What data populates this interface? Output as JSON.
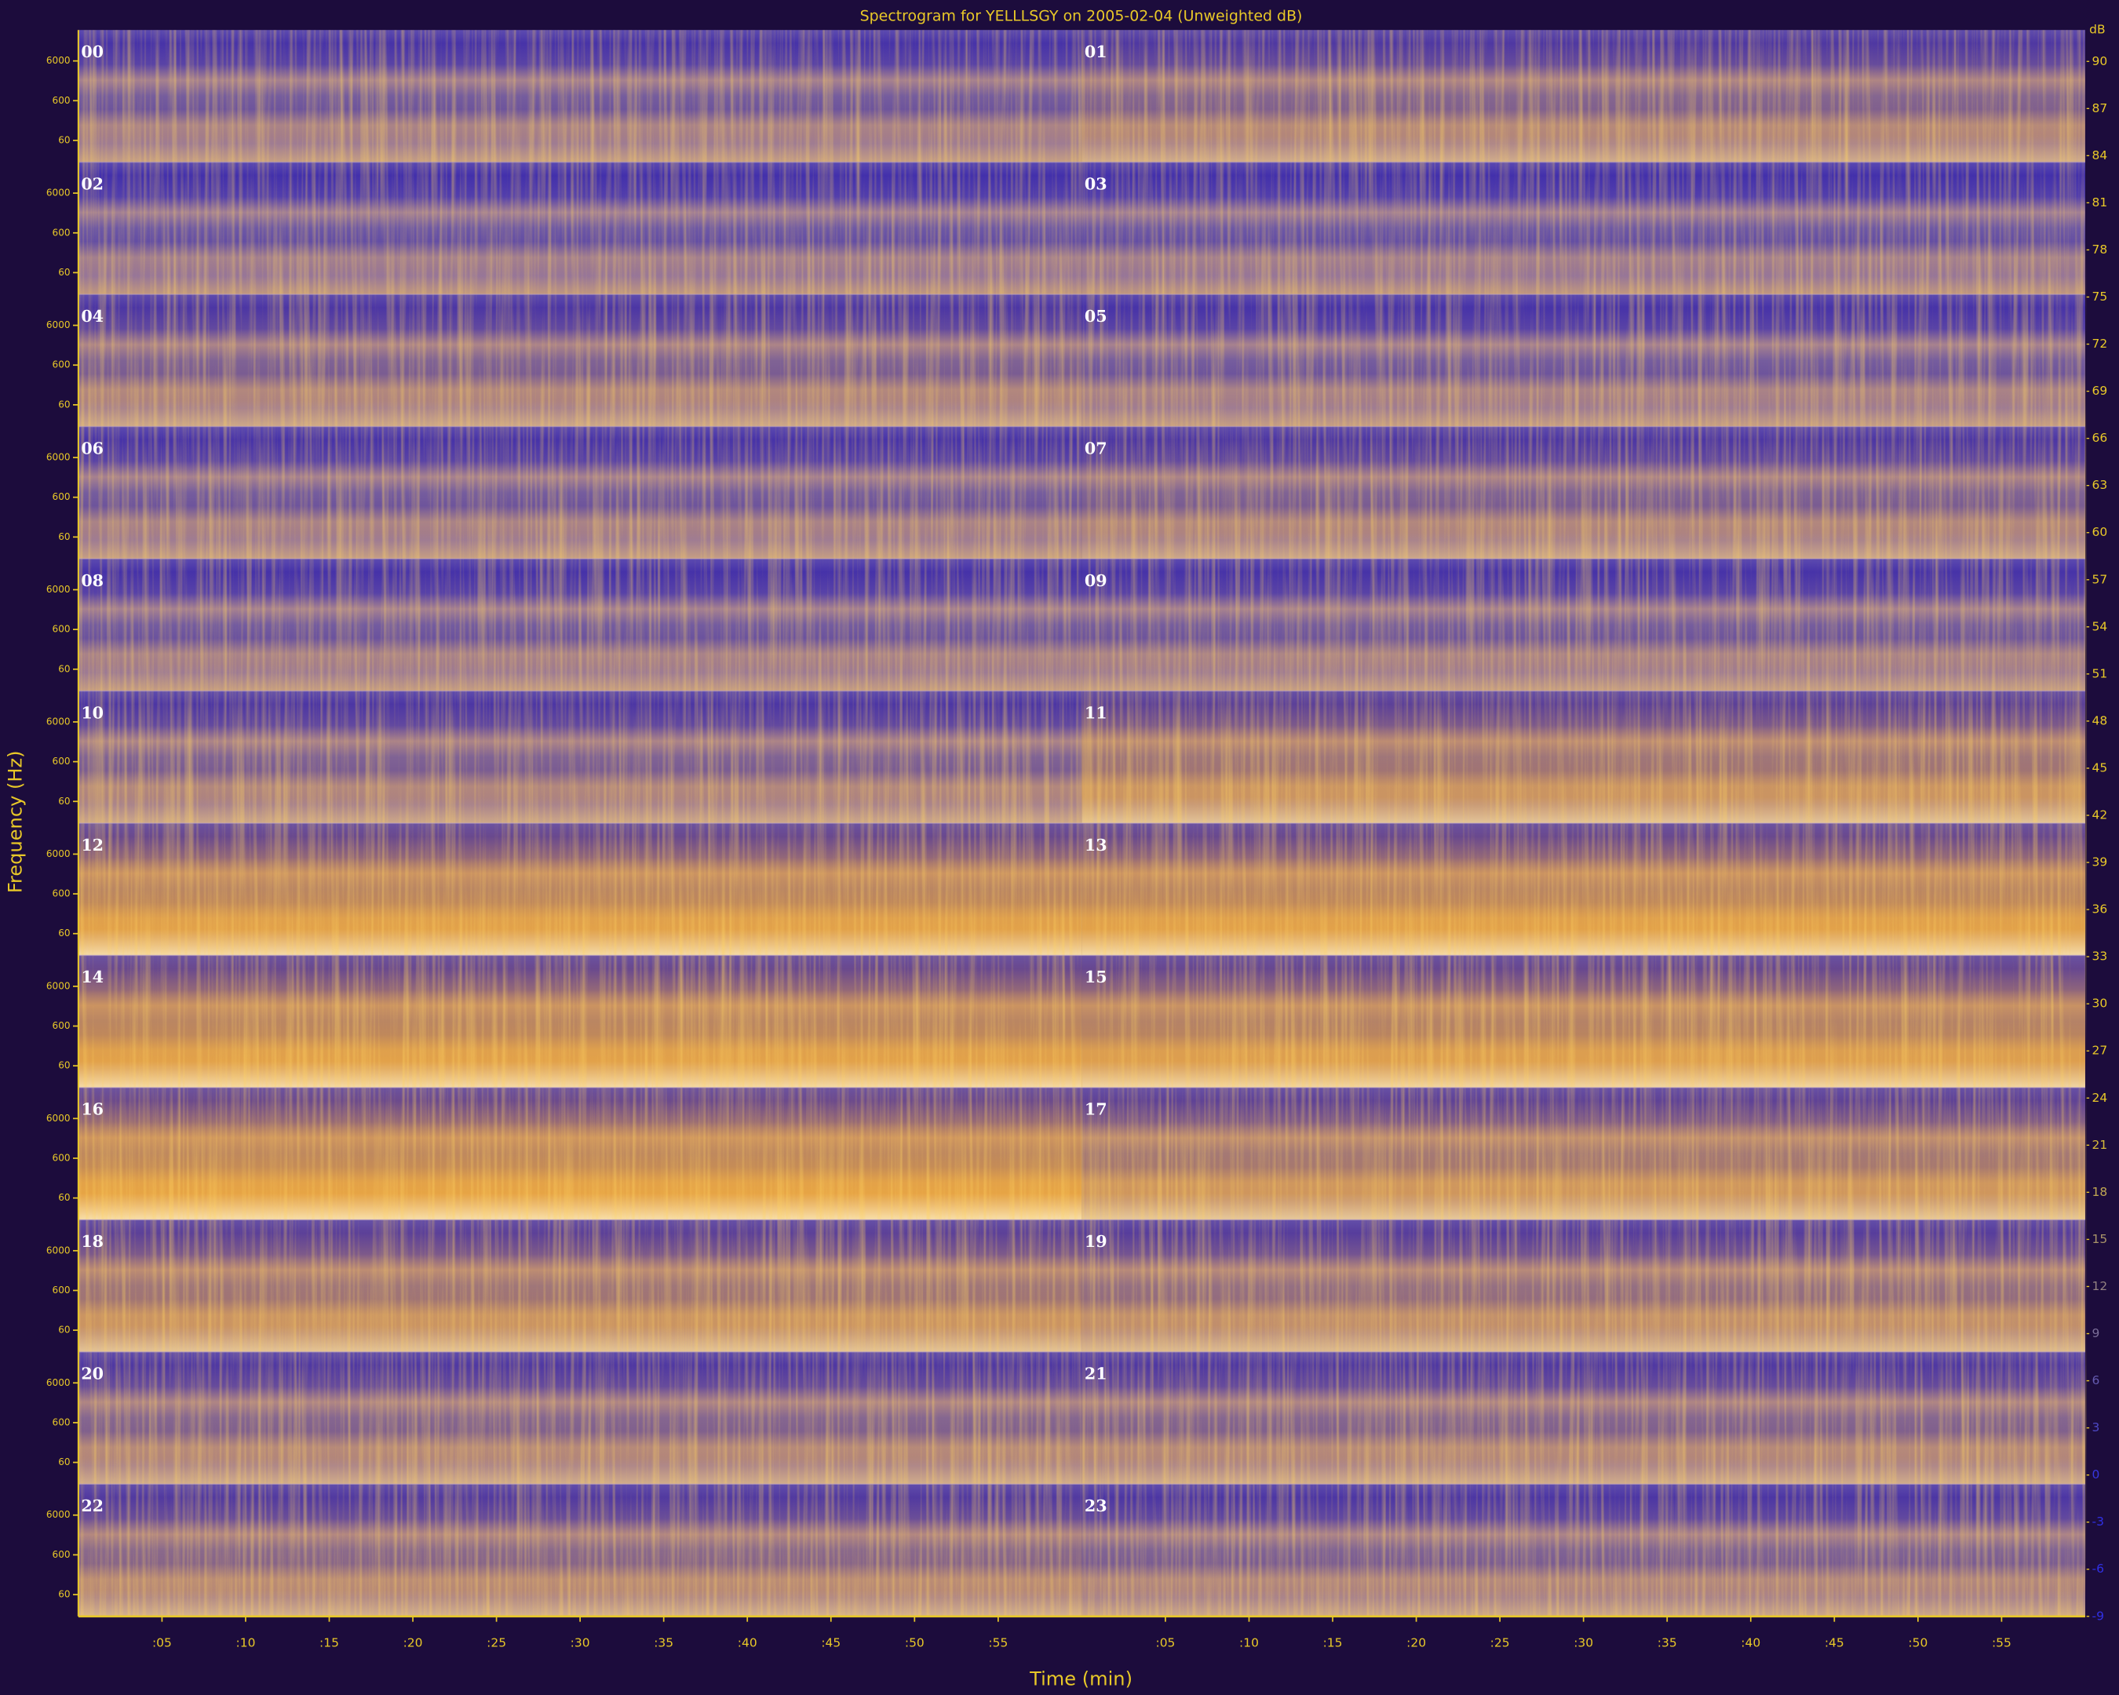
{
  "chart_data": {
    "type": "spectrogram",
    "title": "Spectrogram for YELLLSGY on 2005-02-04 (Unweighted dB)",
    "x_label": "Time (min)",
    "y_label": "Frequency (Hz)",
    "panels": [
      "00",
      "01",
      "02",
      "03",
      "04",
      "05",
      "06",
      "07",
      "08",
      "09",
      "10",
      "11",
      "12",
      "13",
      "14",
      "15",
      "16",
      "17",
      "18",
      "19",
      "20",
      "21",
      "22",
      "23"
    ],
    "xlim": [
      0,
      60
    ],
    "xticks": [
      {
        "value": 5,
        "label": ":05"
      },
      {
        "value": 10,
        "label": ":10"
      },
      {
        "value": 15,
        "label": ":15"
      },
      {
        "value": 20,
        "label": ":20"
      },
      {
        "value": 25,
        "label": ":25"
      },
      {
        "value": 30,
        "label": ":30"
      },
      {
        "value": 35,
        "label": ":35"
      },
      {
        "value": 40,
        "label": ":40"
      },
      {
        "value": 45,
        "label": ":45"
      },
      {
        "value": 50,
        "label": ":50"
      },
      {
        "value": 55,
        "label": ":55"
      }
    ],
    "ylog": true,
    "ylim": [
      17,
      36000
    ],
    "yticks": [
      6000,
      600,
      60
    ],
    "colorbar": {
      "label": "dB",
      "lim": [
        -9,
        92
      ],
      "ticks": [
        90,
        87,
        84,
        81,
        78,
        75,
        72,
        69,
        66,
        63,
        60,
        57,
        54,
        51,
        48,
        45,
        42,
        39,
        36,
        33,
        30,
        27,
        24,
        21,
        18,
        15,
        12,
        9,
        6,
        3,
        0,
        -3,
        -6,
        -9
      ]
    }
  }
}
